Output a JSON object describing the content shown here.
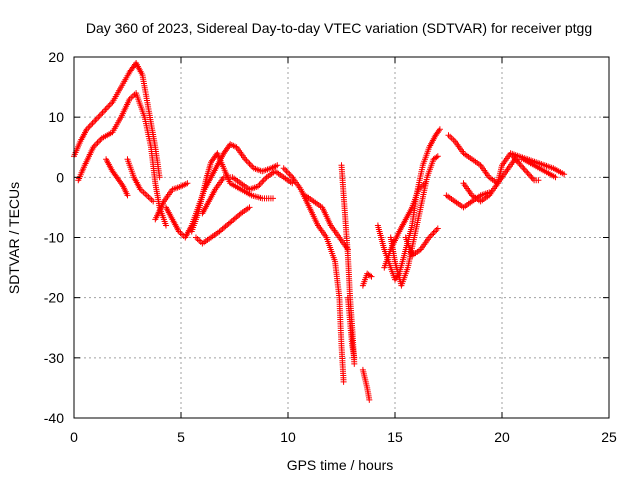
{
  "chart_data": {
    "type": "scatter",
    "title": "Day 360 of 2023, Sidereal Day-to-day VTEC variation (SDTVAR) for receiver ptgg",
    "xlabel": "GPS time / hours",
    "ylabel": "SDTVAR / TECUs",
    "xlim": [
      0,
      25
    ],
    "ylim": [
      -40,
      20
    ],
    "xticks": [
      0,
      5,
      10,
      15,
      20,
      25
    ],
    "yticks": [
      -40,
      -30,
      -20,
      -10,
      0,
      10,
      20
    ],
    "grid": true,
    "marker": "+",
    "series": [
      {
        "color": "#ff0000",
        "tracks": [
          [
            [
              0.0,
              3.5
            ],
            [
              0.3,
              6
            ],
            [
              0.6,
              8
            ],
            [
              1.0,
              9.5
            ],
            [
              1.4,
              11
            ],
            [
              1.8,
              12.5
            ],
            [
              2.2,
              15
            ],
            [
              2.6,
              17.5
            ],
            [
              2.9,
              19
            ],
            [
              3.2,
              17
            ],
            [
              3.5,
              11
            ],
            [
              3.8,
              5
            ],
            [
              4.0,
              0
            ]
          ],
          [
            [
              0.2,
              -0.5
            ],
            [
              0.5,
              2
            ],
            [
              0.9,
              5
            ],
            [
              1.3,
              6.5
            ],
            [
              1.8,
              7.5
            ],
            [
              2.2,
              10
            ],
            [
              2.6,
              13
            ],
            [
              2.9,
              14
            ],
            [
              3.3,
              10
            ],
            [
              3.6,
              5
            ],
            [
              3.8,
              -1
            ],
            [
              4.0,
              -5
            ],
            [
              4.3,
              -8
            ]
          ],
          [
            [
              1.5,
              3
            ],
            [
              1.8,
              1
            ],
            [
              2.0,
              0
            ],
            [
              2.3,
              -1.5
            ],
            [
              2.5,
              -3
            ]
          ],
          [
            [
              2.5,
              3
            ],
            [
              2.8,
              0
            ],
            [
              3.1,
              -2
            ],
            [
              3.4,
              -3
            ],
            [
              3.7,
              -4
            ]
          ],
          [
            [
              3.8,
              -7
            ],
            [
              4.2,
              -4
            ],
            [
              4.6,
              -2
            ],
            [
              5.0,
              -1.5
            ],
            [
              5.3,
              -1
            ]
          ],
          [
            [
              4.3,
              -5
            ],
            [
              4.6,
              -7
            ],
            [
              4.9,
              -9
            ],
            [
              5.2,
              -10
            ],
            [
              5.5,
              -8
            ],
            [
              5.8,
              -5
            ],
            [
              6.1,
              -2
            ],
            [
              6.4,
              0
            ],
            [
              6.7,
              2
            ],
            [
              7.0,
              4
            ],
            [
              7.3,
              5.5
            ],
            [
              7.6,
              5
            ],
            [
              8.0,
              3
            ],
            [
              8.4,
              1.5
            ],
            [
              8.8,
              1
            ],
            [
              9.2,
              1.5
            ],
            [
              9.5,
              2
            ]
          ],
          [
            [
              5.5,
              -9
            ],
            [
              5.8,
              -6
            ],
            [
              6.0,
              -3
            ],
            [
              6.2,
              0
            ],
            [
              6.4,
              2.5
            ],
            [
              6.7,
              4
            ],
            [
              7.0,
              1.5
            ],
            [
              7.3,
              -1
            ],
            [
              7.8,
              -2
            ],
            [
              8.3,
              -3
            ],
            [
              8.8,
              -3.5
            ],
            [
              9.3,
              -3.5
            ]
          ],
          [
            [
              5.7,
              -10
            ],
            [
              6.0,
              -11
            ],
            [
              6.4,
              -10
            ],
            [
              6.8,
              -9
            ],
            [
              7.3,
              -7.5
            ],
            [
              7.8,
              -6
            ],
            [
              8.2,
              -5
            ]
          ],
          [
            [
              6.0,
              -6
            ],
            [
              6.3,
              -4
            ],
            [
              6.6,
              -2
            ],
            [
              7.0,
              0
            ],
            [
              7.4,
              0
            ],
            [
              7.8,
              -1
            ],
            [
              8.2,
              -2
            ],
            [
              8.6,
              -1.5
            ],
            [
              9.0,
              0
            ],
            [
              9.4,
              1
            ],
            [
              9.8,
              0
            ],
            [
              10.2,
              -1
            ]
          ],
          [
            [
              9.8,
              1.5
            ],
            [
              10.2,
              0
            ],
            [
              10.6,
              -2
            ],
            [
              11.0,
              -5
            ],
            [
              11.4,
              -8
            ],
            [
              11.8,
              -10
            ],
            [
              12.0,
              -12
            ],
            [
              12.2,
              -14
            ],
            [
              12.4,
              -20
            ],
            [
              12.5,
              -28
            ],
            [
              12.6,
              -34
            ]
          ],
          [
            [
              10.8,
              -3
            ],
            [
              11.2,
              -4
            ],
            [
              11.6,
              -5
            ],
            [
              12.0,
              -8
            ],
            [
              12.4,
              -10
            ],
            [
              12.8,
              -12
            ]
          ],
          [
            [
              12.5,
              2
            ],
            [
              12.6,
              -3
            ],
            [
              12.7,
              -8
            ],
            [
              12.8,
              -13
            ],
            [
              12.9,
              -20
            ],
            [
              13.0,
              -25
            ],
            [
              13.1,
              -31
            ]
          ],
          [
            [
              12.8,
              -20
            ],
            [
              12.9,
              -24
            ],
            [
              13.0,
              -28
            ],
            [
              13.1,
              -30
            ]
          ],
          [
            [
              13.5,
              -32
            ],
            [
              13.7,
              -35
            ],
            [
              13.8,
              -37
            ]
          ],
          [
            [
              13.5,
              -18
            ],
            [
              13.7,
              -16
            ],
            [
              13.9,
              -16.5
            ]
          ],
          [
            [
              14.2,
              -8
            ],
            [
              14.5,
              -12
            ],
            [
              14.8,
              -15
            ],
            [
              15.0,
              -17
            ],
            [
              15.2,
              -16
            ],
            [
              15.5,
              -12
            ],
            [
              15.8,
              -8
            ],
            [
              16.0,
              -3
            ],
            [
              16.3,
              2
            ],
            [
              16.6,
              5
            ],
            [
              16.9,
              7
            ],
            [
              17.1,
              8
            ]
          ],
          [
            [
              14.8,
              -10
            ],
            [
              15.0,
              -14
            ],
            [
              15.3,
              -18
            ],
            [
              15.6,
              -15
            ],
            [
              15.9,
              -10
            ],
            [
              16.2,
              -5
            ],
            [
              16.5,
              0
            ],
            [
              16.8,
              3
            ],
            [
              17.0,
              3.5
            ]
          ],
          [
            [
              14.5,
              -15
            ],
            [
              14.8,
              -12
            ],
            [
              15.2,
              -9
            ],
            [
              15.5,
              -7
            ],
            [
              15.8,
              -5
            ],
            [
              16.1,
              -2
            ],
            [
              16.4,
              -1
            ]
          ],
          [
            [
              15.5,
              -10
            ],
            [
              15.8,
              -13
            ],
            [
              16.2,
              -12
            ],
            [
              16.6,
              -10
            ],
            [
              17.0,
              -8.5
            ]
          ],
          [
            [
              17.4,
              -3
            ],
            [
              17.8,
              -4
            ],
            [
              18.2,
              -5
            ],
            [
              18.6,
              -4
            ],
            [
              19.0,
              -3
            ],
            [
              19.4,
              -2.5
            ]
          ],
          [
            [
              17.5,
              7
            ],
            [
              17.8,
              6
            ],
            [
              18.2,
              4
            ],
            [
              18.6,
              3
            ],
            [
              19.0,
              2
            ],
            [
              19.4,
              0
            ],
            [
              19.8,
              -1
            ],
            [
              20.0,
              2
            ],
            [
              20.4,
              4
            ],
            [
              20.8,
              3.5
            ],
            [
              21.2,
              3
            ],
            [
              21.6,
              2.5
            ],
            [
              22.0,
              2
            ],
            [
              22.4,
              1.5
            ],
            [
              22.9,
              0.5
            ]
          ],
          [
            [
              18.2,
              -1
            ],
            [
              18.6,
              -3
            ],
            [
              19.0,
              -4
            ],
            [
              19.4,
              -3
            ],
            [
              19.8,
              -1
            ],
            [
              20.2,
              1
            ],
            [
              20.6,
              3
            ],
            [
              21.0,
              3
            ],
            [
              21.5,
              2
            ],
            [
              22.0,
              1
            ],
            [
              22.5,
              0
            ]
          ],
          [
            [
              20.5,
              3.5
            ],
            [
              21.0,
              1.5
            ],
            [
              21.5,
              -0.5
            ],
            [
              21.7,
              -0.5
            ]
          ]
        ]
      }
    ]
  }
}
